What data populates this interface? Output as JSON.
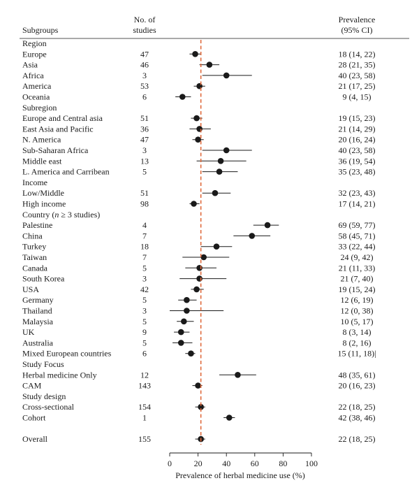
{
  "headers": {
    "subgroups": "Subgroups",
    "studies_line1": "No. of",
    "studies_line2": "studies",
    "prevalence_line1": "Prevalence",
    "prevalence_line2": "(95% CI)"
  },
  "chart_data": {
    "type": "forest",
    "xlabel": "Prevalence of herbal medicine use (%)",
    "xlim": [
      0,
      100
    ],
    "xticks": [
      0,
      20,
      40,
      60,
      80,
      100
    ],
    "reference_line": 22,
    "colors": {
      "point": "#1a1a1a",
      "ci": "#1a1a1a",
      "reference": "#e06a3c",
      "rule": "#1a1a1a"
    },
    "rows": [
      {
        "kind": "heading",
        "label": "Region"
      },
      {
        "kind": "data",
        "label": "Europe",
        "n": "47",
        "est": 18,
        "lo": 14,
        "hi": 22,
        "text": "18 (14, 22)"
      },
      {
        "kind": "data",
        "label": "Asia",
        "n": "46",
        "est": 28,
        "lo": 21,
        "hi": 35,
        "text": "28 (21, 35)"
      },
      {
        "kind": "data",
        "label": "Africa",
        "n": "3",
        "est": 40,
        "lo": 23,
        "hi": 58,
        "text": "40 (23, 58)"
      },
      {
        "kind": "data",
        "label": "America",
        "n": "53",
        "est": 21,
        "lo": 17,
        "hi": 25,
        "text": "21 (17, 25)"
      },
      {
        "kind": "data",
        "label": "Oceania",
        "n": "6",
        "est": 9,
        "lo": 4,
        "hi": 15,
        "text": "9 (4, 15)"
      },
      {
        "kind": "heading",
        "label": "Subregion"
      },
      {
        "kind": "data",
        "label": "Europe and Central asia",
        "n": "51",
        "est": 19,
        "lo": 15,
        "hi": 23,
        "text": "19 (15, 23)"
      },
      {
        "kind": "data",
        "label": "East Asia and Pacific",
        "n": "36",
        "est": 21,
        "lo": 14,
        "hi": 29,
        "text": "21 (14, 29)"
      },
      {
        "kind": "data",
        "label": "N. America",
        "n": "47",
        "est": 20,
        "lo": 16,
        "hi": 24,
        "text": "20 (16, 24)"
      },
      {
        "kind": "data",
        "label": "Sub-Saharan Africa",
        "n": "3",
        "est": 40,
        "lo": 23,
        "hi": 58,
        "text": "40 (23, 58)"
      },
      {
        "kind": "data",
        "label": "Middle east",
        "n": "13",
        "est": 36,
        "lo": 19,
        "hi": 54,
        "text": "36 (19, 54)"
      },
      {
        "kind": "data",
        "label": "L. America and Carribean",
        "n": "5",
        "est": 35,
        "lo": 23,
        "hi": 48,
        "text": "35 (23, 48)"
      },
      {
        "kind": "heading",
        "label": "Income"
      },
      {
        "kind": "data",
        "label": "Low/Middle",
        "n": "51",
        "est": 32,
        "lo": 23,
        "hi": 43,
        "text": "32 (23, 43)"
      },
      {
        "kind": "data",
        "label": "High income",
        "n": "98",
        "est": 17,
        "lo": 14,
        "hi": 21,
        "text": "17 (14, 21)"
      },
      {
        "kind": "heading",
        "label": "Country (",
        "label_italic": "n",
        "label_suffix": " ≥ 3 studies)"
      },
      {
        "kind": "data",
        "label": "Palestine",
        "n": "4",
        "est": 69,
        "lo": 59,
        "hi": 77,
        "text": "69 (59, 77)"
      },
      {
        "kind": "data",
        "label": "China",
        "n": "7",
        "est": 58,
        "lo": 45,
        "hi": 71,
        "text": "58 (45, 71)"
      },
      {
        "kind": "data",
        "label": "Turkey",
        "n": "18",
        "est": 33,
        "lo": 22,
        "hi": 44,
        "text": "33 (22, 44)"
      },
      {
        "kind": "data",
        "label": "Taiwan",
        "n": "7",
        "est": 24,
        "lo": 9,
        "hi": 42,
        "text": "24 (9, 42)"
      },
      {
        "kind": "data",
        "label": "Canada",
        "n": "5",
        "est": 21,
        "lo": 11,
        "hi": 33,
        "text": "21 (11, 33)"
      },
      {
        "kind": "data",
        "label": "South Korea",
        "n": "3",
        "est": 21,
        "lo": 7,
        "hi": 40,
        "text": "21 (7, 40)"
      },
      {
        "kind": "data",
        "label": "USA",
        "n": "42",
        "est": 19,
        "lo": 15,
        "hi": 24,
        "text": "19 (15, 24)"
      },
      {
        "kind": "data",
        "label": "Germany",
        "n": "5",
        "est": 12,
        "lo": 6,
        "hi": 19,
        "text": "12 (6, 19)"
      },
      {
        "kind": "data",
        "label": "Thailand",
        "n": "3",
        "est": 12,
        "lo": 0,
        "hi": 38,
        "text": "12 (0, 38)"
      },
      {
        "kind": "data",
        "label": "Malaysia",
        "n": "5",
        "est": 10,
        "lo": 5,
        "hi": 17,
        "text": "10 (5, 17)"
      },
      {
        "kind": "data",
        "label": "UK",
        "n": "9",
        "est": 8,
        "lo": 3,
        "hi": 14,
        "text": "8 (3, 14)"
      },
      {
        "kind": "data",
        "label": "Australia",
        "n": "5",
        "est": 8,
        "lo": 2,
        "hi": 16,
        "text": "8 (2, 16)"
      },
      {
        "kind": "data",
        "label": "Mixed European countries",
        "n": "6",
        "est": 15,
        "lo": 11,
        "hi": 18,
        "text": "15 (11, 18)|"
      },
      {
        "kind": "heading",
        "label": "Study Focus"
      },
      {
        "kind": "data",
        "label": "Herbal medicine Only",
        "n": "12",
        "est": 48,
        "lo": 35,
        "hi": 61,
        "text": "48 (35, 61)"
      },
      {
        "kind": "data",
        "label": "CAM",
        "n": "143",
        "est": 20,
        "lo": 16,
        "hi": 23,
        "text": "20 (16, 23)"
      },
      {
        "kind": "heading",
        "label": "Study design"
      },
      {
        "kind": "data",
        "label": "Cross-sectional",
        "n": "154",
        "est": 22,
        "lo": 18,
        "hi": 25,
        "text": "22 (18, 25)"
      },
      {
        "kind": "data",
        "label": "Cohort",
        "n": "1",
        "est": 42,
        "lo": 38,
        "hi": 46,
        "text": "42 (38, 46)"
      },
      {
        "kind": "spacer"
      },
      {
        "kind": "data",
        "label": "Overall",
        "n": "155",
        "est": 22,
        "lo": 18,
        "hi": 25,
        "text": "22 (18, 25)"
      }
    ]
  }
}
